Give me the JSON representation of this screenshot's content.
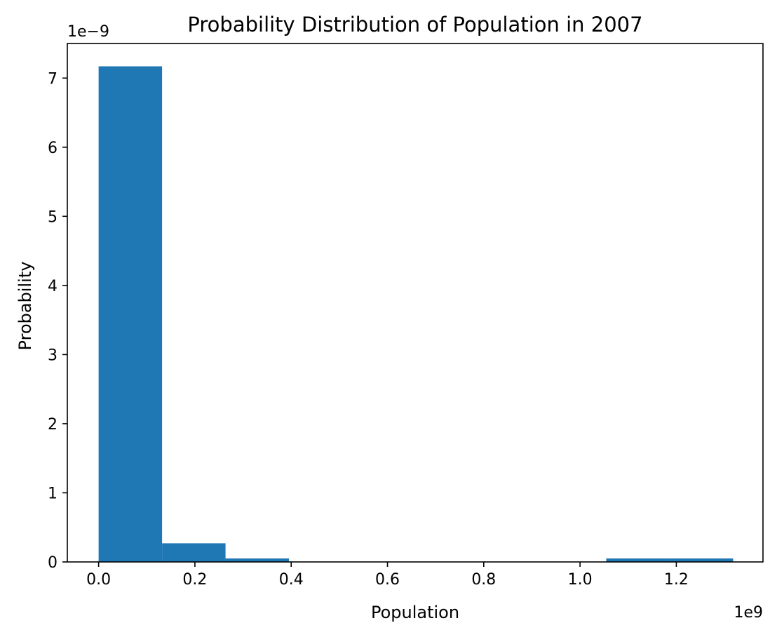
{
  "chart_data": {
    "type": "bar",
    "title": "Probability Distribution of Population in 2007",
    "xlabel": "Population",
    "ylabel": "Probability",
    "x_offset_label": "1e9",
    "y_offset_label": "1e−9",
    "x_scale": 1000000000.0,
    "y_scale": 1e-09,
    "xlim": [
      -0.065,
      1.38
    ],
    "ylim": [
      0,
      7.5
    ],
    "x_ticks": [
      0.0,
      0.2,
      0.4,
      0.6,
      0.8,
      1.0,
      1.2
    ],
    "x_tick_labels": [
      "0.0",
      "0.2",
      "0.4",
      "0.6",
      "0.8",
      "1.0",
      "1.2"
    ],
    "y_ticks": [
      0,
      1,
      2,
      3,
      4,
      5,
      6,
      7
    ],
    "y_tick_labels": [
      "0",
      "1",
      "2",
      "3",
      "4",
      "5",
      "6",
      "7"
    ],
    "bin_edges": [
      0.0,
      0.1318,
      0.2636,
      0.3954,
      0.5272,
      0.659,
      0.7908,
      0.9226,
      1.0544,
      1.1862,
      1.318
    ],
    "values": [
      7.17,
      0.27,
      0.05,
      0.0,
      0.0,
      0.0,
      0.0,
      0.0,
      0.05,
      0.05
    ],
    "grid": false,
    "bar_color": "#1f77b4"
  }
}
